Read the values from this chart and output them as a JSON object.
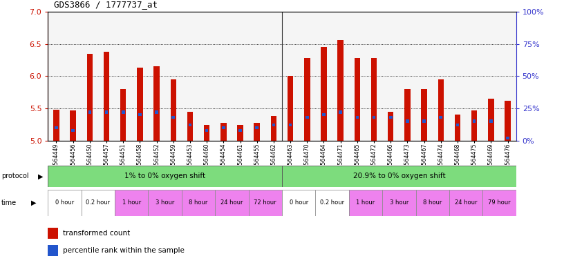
{
  "title": "GDS3866 / 1777737_at",
  "samples": [
    "GSM564449",
    "GSM564456",
    "GSM564450",
    "GSM564457",
    "GSM564451",
    "GSM564458",
    "GSM564452",
    "GSM564459",
    "GSM564453",
    "GSM564460",
    "GSM564454",
    "GSM564461",
    "GSM564455",
    "GSM564462",
    "GSM564463",
    "GSM564470",
    "GSM564464",
    "GSM564471",
    "GSM564465",
    "GSM564472",
    "GSM564466",
    "GSM564473",
    "GSM564467",
    "GSM564474",
    "GSM564468",
    "GSM564475",
    "GSM564469",
    "GSM564476"
  ],
  "red_values": [
    5.48,
    5.47,
    6.35,
    6.38,
    5.8,
    6.13,
    6.15,
    5.95,
    5.45,
    5.24,
    5.27,
    5.24,
    5.27,
    5.38,
    6.0,
    6.28,
    6.45,
    6.56,
    6.28,
    6.28,
    5.45,
    5.8,
    5.8,
    5.95,
    5.4,
    5.47,
    5.65,
    5.62
  ],
  "blue_values": [
    10,
    8,
    22,
    22,
    22,
    20,
    22,
    18,
    12,
    8,
    10,
    8,
    10,
    12,
    12,
    18,
    20,
    22,
    18,
    18,
    18,
    15,
    15,
    18,
    12,
    15,
    15,
    2
  ],
  "ylim_left": [
    5.0,
    7.0
  ],
  "ylim_right": [
    0,
    100
  ],
  "yticks_left": [
    5.0,
    5.5,
    6.0,
    6.5,
    7.0
  ],
  "yticks_right": [
    0,
    25,
    50,
    75,
    100
  ],
  "protocol_groups": [
    {
      "label": "1% to 0% oxygen shift",
      "start": 0,
      "end": 14,
      "color": "#7ddc7d"
    },
    {
      "label": "20.9% to 0% oxygen shift",
      "start": 14,
      "end": 28,
      "color": "#7ddc7d"
    }
  ],
  "time_labels_group1": [
    "0 hour",
    "0.2 hour",
    "1 hour",
    "3 hour",
    "8 hour",
    "24 hour",
    "72 hour"
  ],
  "time_labels_group2": [
    "0 hour",
    "0.2 hour",
    "1 hour",
    "3 hour",
    "8 hour",
    "24 hour",
    "79 hour"
  ],
  "time_colors": [
    "#ffffff",
    "#ffffff",
    "#ee82ee",
    "#ee82ee",
    "#ee82ee",
    "#ee82ee",
    "#ee82ee"
  ],
  "bar_color_red": "#cc1100",
  "bar_color_blue": "#2255cc",
  "background_color": "#ffffff",
  "left_axis_color": "#cc1100",
  "right_axis_color": "#3333cc",
  "chart_bg": "#f5f5f5"
}
